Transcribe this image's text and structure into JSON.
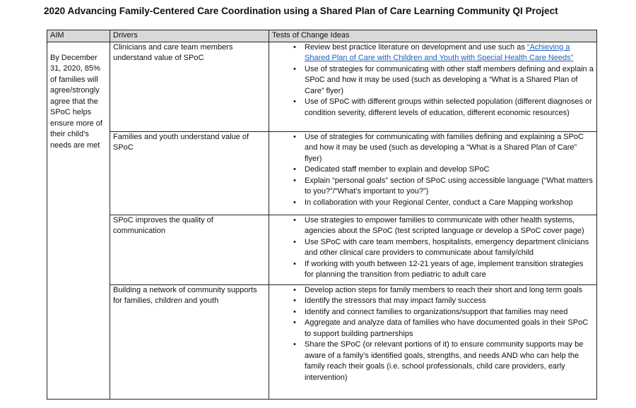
{
  "title": "2020 Advancing Family-Centered Care Coordination using a Shared Plan of Care Learning Community QI Project",
  "headers": {
    "aim": "AIM",
    "drivers": "Drivers",
    "tests": "Tests of Change Ideas"
  },
  "aim": "By December 31, 2020, 85% of families will agree/strongly agree that the SPoC helps ensure more of their child’s needs are met",
  "link_color": "#1f5fbf",
  "rows": [
    {
      "driver": "Clinicians and care team members understand value of SPoC",
      "first_prefix": "Review best practice literature on development and use such as ",
      "first_link": "“Achieving a Shared Plan of Care with Children and Youth with Special Health Care Needs”",
      "ideas": [
        "Use of strategies for communicating with other staff members defining and explain a SPoC and how it may be used (such as developing a “What is a Shared Plan of Care” flyer)",
        "Use of SPoC with different groups within selected population (different diagnoses or condition severity, different levels of education, different economic resources)"
      ]
    },
    {
      "driver": "Families and youth understand value of SPoC",
      "ideas": [
        "Use of strategies for communicating with families defining and explaining a SPoC and how it may be used (such as developing a “What is a Shared Plan of Care” flyer)",
        "Dedicated staff member to explain and develop SPoC",
        "Explain “personal goals” section of SPoC using accessible language (“What matters to you?”/“What’s important to you?”)",
        "In collaboration with your Regional Center, conduct a Care Mapping workshop"
      ]
    },
    {
      "driver": "SPoC improves the quality of communication",
      "ideas": [
        "Use strategies to empower families to communicate with other health systems, agencies about the SPoC (test scripted language or develop a SPoC cover page)",
        "Use SPoC with care team members, hospitalists, emergency department clinicians and other clinical care providers to communicate about family/child",
        "If working with youth between 12-21 years of age, implement transition strategies for planning the transition from pediatric to adult care"
      ]
    },
    {
      "driver": "Building a network of community supports for families, children and youth",
      "ideas": [
        "Develop action steps for family members to reach their short and long term goals",
        "Identify the stressors that may impact family success",
        "Identify and connect families to organizations/support that families may need",
        "Aggregate and analyze data of families who have documented goals in their SPoC to support building partnerships",
        "Share the SPoC (or relevant portions of it) to ensure community supports may be aware of a family’s identified goals, strengths, and needs AND who can help the family reach their goals (i.e. school professionals, child care providers, early intervention)"
      ]
    }
  ]
}
